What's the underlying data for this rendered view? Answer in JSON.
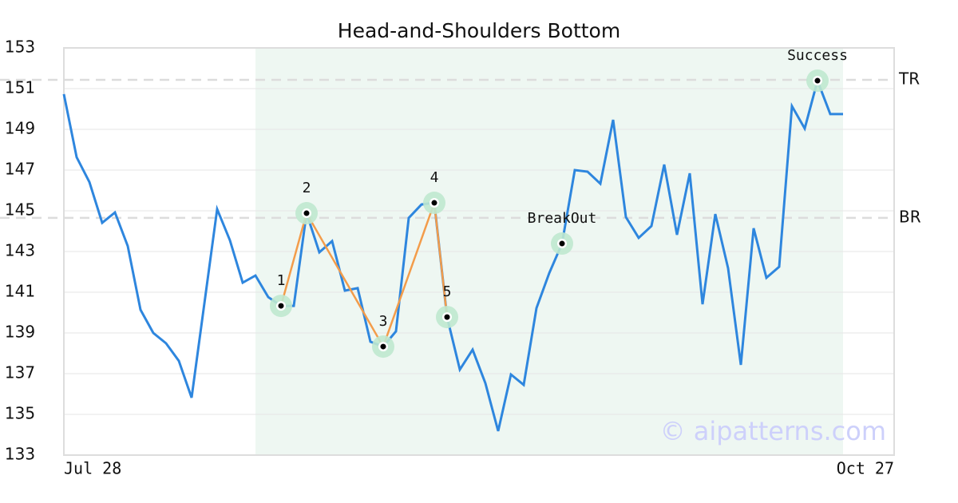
{
  "chart_data": {
    "type": "line",
    "title": "Head-and-Shoulders Bottom",
    "color": "#2e86de",
    "values": [
      150.73,
      147.63,
      146.41,
      144.41,
      144.92,
      143.27,
      140.14,
      139.0,
      138.49,
      137.63,
      135.82,
      140.45,
      145.08,
      143.55,
      141.47,
      141.82,
      140.76,
      140.33,
      140.33,
      144.88,
      142.96,
      143.51,
      141.08,
      141.2,
      138.57,
      138.33,
      139.08,
      144.65,
      145.31,
      145.39,
      139.78,
      137.2,
      138.18,
      136.53,
      134.18,
      136.96,
      136.45,
      140.22,
      141.94,
      143.39,
      147.0,
      146.92,
      146.33,
      149.47,
      144.69,
      143.67,
      144.25,
      147.27,
      143.82,
      146.84,
      140.41,
      144.84,
      142.18,
      137.43,
      144.14,
      141.71,
      142.25,
      150.14,
      149.04,
      151.39,
      149.75,
      149.75
    ],
    "xlim": [
      0,
      65
    ],
    "xticks": [
      {
        "value": 0,
        "label": "Jul 28"
      },
      {
        "value": 65,
        "label": "Oct 27"
      }
    ],
    "ylim": [
      133,
      153
    ],
    "yticks": [
      133,
      135,
      137,
      139,
      141,
      143,
      145,
      147,
      149,
      151,
      153
    ],
    "grid": true,
    "highlight": [
      15,
      61
    ],
    "highlight_color": "#eef7f2",
    "levels": [
      {
        "label": "TR",
        "value": 151.43
      },
      {
        "label": "BR",
        "value": 144.65
      }
    ],
    "pattern": {
      "color": "#f39c4a",
      "points": [
        {
          "label": "1",
          "x": 17,
          "y": 140.33
        },
        {
          "label": "2",
          "x": 19,
          "y": 144.88
        },
        {
          "label": "3",
          "x": 25,
          "y": 138.33
        },
        {
          "label": "4",
          "x": 29,
          "y": 145.39
        },
        {
          "label": "5",
          "x": 30,
          "y": 139.78
        }
      ]
    },
    "events": [
      {
        "label": "BreakOut",
        "x": 39,
        "y": 143.39
      },
      {
        "label": "Success",
        "x": 59,
        "y": 151.39
      }
    ],
    "watermark": "© aipatterns.com"
  }
}
